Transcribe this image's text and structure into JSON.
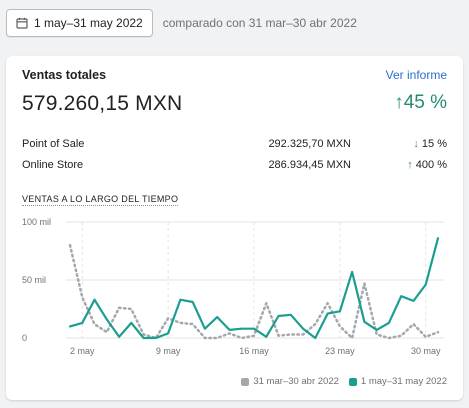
{
  "header": {
    "date_range": "1 may–31 may 2022",
    "compare_text": "comparado con 31 mar–30 abr 2022"
  },
  "card": {
    "title": "Ventas totales",
    "view_report": "Ver informe",
    "total": "579.260,15 MXN",
    "growth": "45 %",
    "channels": [
      {
        "label": "Point of Sale",
        "value": "292.325,70 MXN",
        "change": "15 %",
        "direction": "down"
      },
      {
        "label": "Online Store",
        "value": "286.934,45 MXN",
        "change": "400 %",
        "direction": "up"
      }
    ],
    "chart_title": "VENTAS A LO LARGO DEL TIEMPO"
  },
  "colors": {
    "current": "#1b9e90",
    "previous": "#a4a8ac",
    "up": "#268a74",
    "down": "#b05910",
    "link": "#2c6ecb"
  },
  "chart_data": {
    "type": "line",
    "x": [
      1,
      2,
      3,
      4,
      5,
      6,
      7,
      8,
      9,
      10,
      11,
      12,
      13,
      14,
      15,
      16,
      17,
      18,
      19,
      20,
      21,
      22,
      23,
      24,
      25,
      26,
      27,
      28,
      29,
      30,
      31
    ],
    "x_tick_labels": [
      "2 may",
      "9 may",
      "16 may",
      "23 may",
      "30 may"
    ],
    "x_ticks": [
      2,
      9,
      16,
      23,
      30
    ],
    "y_tick_labels": [
      "100 mil",
      "50 mil",
      "0"
    ],
    "y_ticks": [
      100000,
      50000,
      0
    ],
    "ylim": [
      0,
      100000
    ],
    "grid": true,
    "legend_position": "bottom-right",
    "series": [
      {
        "name": "31 mar–30 abr 2022",
        "style": "dotted",
        "color": "#a4a8ac",
        "values": [
          80000,
          35000,
          12000,
          5000,
          26000,
          25000,
          3000,
          0,
          17000,
          13000,
          12000,
          0,
          0,
          4000,
          0,
          2000,
          30000,
          2000,
          3000,
          3000,
          12000,
          30000,
          10000,
          0,
          47000,
          3000,
          0,
          2000,
          12000,
          1000,
          5000
        ]
      },
      {
        "name": "1 may–31 may 2022",
        "style": "solid",
        "color": "#1b9e90",
        "values": [
          10000,
          13000,
          33000,
          16000,
          1000,
          13000,
          0,
          0,
          4000,
          33000,
          31000,
          8000,
          18000,
          7000,
          8000,
          8000,
          1000,
          19000,
          20000,
          8000,
          0,
          21000,
          23000,
          57000,
          14000,
          7000,
          13000,
          36000,
          32000,
          46000,
          86000
        ]
      }
    ]
  }
}
